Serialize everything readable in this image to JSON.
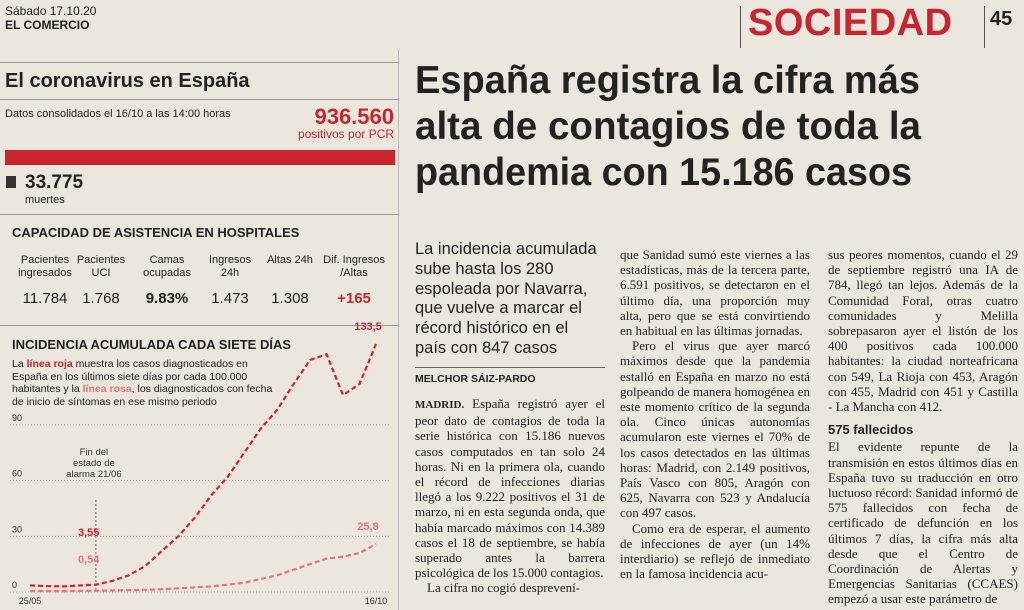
{
  "header": {
    "date": "Sábado 17.10.20",
    "paper": "EL COMERCIO",
    "section": "SOCIEDAD",
    "page": "45"
  },
  "sidebar": {
    "title": "El coronavirus en España",
    "subtitle": "Datos consolidados el 16/10 a las 14:00 horas",
    "positives": "936.560",
    "positives_label": "positivos por PCR",
    "deaths": "33.775",
    "deaths_label": "muertes",
    "hospital_title": "CAPACIDAD DE ASISTENCIA EN HOSPITALES",
    "hospital_headers": [
      "Pacientes ingresados",
      "Pacientes UCI",
      "Camas ocupadas",
      "Ingresos 24h",
      "Altas 24h",
      "Dif. Ingresos /Altas"
    ],
    "hospital_values": [
      "11.784",
      "1.768",
      "9.83%",
      "1.473",
      "1.308",
      "+165"
    ],
    "chart_title": "INCIDENCIA ACUMULADA CADA SIETE DÍAS",
    "chart_desc": [
      "La ",
      "línea roja",
      " muestra los casos diagnosticados en España en los últimos siete días por cada 100.000 habitantes y la ",
      "línea rosa",
      ", los diagnosticados con fecha de inicio de síntomas en ese mismo periodo"
    ],
    "annotation": "Fin del estado de alarma 21/06"
  },
  "chart_data": {
    "type": "line",
    "categories": [
      "25/05",
      null,
      null,
      null,
      null,
      null,
      null,
      null,
      null,
      null,
      null,
      null,
      null,
      null,
      null,
      null,
      null,
      null,
      null,
      null,
      null,
      "16/10"
    ],
    "series": [
      {
        "name": "línea roja",
        "color": "#d3232e",
        "values": [
          3.55,
          3.2,
          3,
          3.5,
          4,
          6,
          9,
          14,
          22,
          30,
          40,
          52,
          62,
          75,
          88,
          98,
          112,
          125,
          128,
          106,
          112,
          133.5
        ],
        "value_labels": [
          "3,55",
          null,
          null,
          null,
          null,
          null,
          null,
          null,
          null,
          null,
          null,
          null,
          null,
          null,
          null,
          null,
          null,
          null,
          null,
          null,
          null,
          "133,5"
        ]
      },
      {
        "name": "línea rosa",
        "color": "#e8737d",
        "values": [
          0.54,
          0.5,
          0.5,
          0.6,
          0.7,
          0.8,
          1,
          1.2,
          1.5,
          2,
          2.5,
          3,
          4,
          5,
          7,
          9,
          12,
          15,
          18,
          19,
          21,
          25.8
        ],
        "value_labels": [
          "0,54",
          null,
          null,
          null,
          null,
          null,
          null,
          null,
          null,
          null,
          null,
          null,
          null,
          null,
          null,
          null,
          null,
          null,
          null,
          null,
          null,
          "25,8"
        ]
      }
    ],
    "ylim": [
      0,
      140
    ],
    "yticks": [
      0,
      30,
      60,
      90
    ],
    "grid": true
  },
  "article": {
    "headline": [
      "España registra la cifra más",
      "alta de contagios de toda la",
      "pandemia con 15.186 casos"
    ],
    "deck": "La incidencia acumulada sube hasta los 280 espoleada por Navarra, que vuelve a marcar el récord histórico en el país con 847 casos",
    "author": "MELCHOR SÁIZ-PARDO",
    "lead": "MADRID.",
    "col1": [
      "España registró ayer el peor dato de contagios de toda la serie histórica con 15.186 nuevos casos computados en tan solo 24 horas. Ni en la primera ola, cuando el récord de infecciones diarias llegó a los 9.222 positivos el 31 de marzo, ni en esta segunda onda, que había marcado máximos con 14.389 casos el 18 de septiembre, se había superado antes la barrera psicológica de los 15.000 contagios.",
      "La cifra no cogió desprevení-"
    ],
    "col2": [
      "que Sanidad sumó este viernes a las estadísticas, más de la tercera parte, 6.591 positivos, se detectaron en el último día, una proporción muy alta, pero que se está convirtiendo en habitual en las últimas jornadas.",
      "Pero el virus que ayer marcó máximos desde que la pandemia estalló en España en marzo no está golpeando de manera homogénea en este momento crítico de la segunda ola. Cinco únicas autonomías acumularon este viernes el 70% de los casos detectados en las últimas horas: Madrid, con 2.149 positivos, País Vasco con 805, Aragón con 625, Navarra con 523 y Andalucía con 497 casos.",
      "Como era de esperar, el aumento de infecciones de ayer (un 14% interdiario) se reflejó de inmediato en la famosa incidencia acu-"
    ],
    "col3a": "sus peores momentos, cuando el 29 de septiembre registró una IA de 784, llegó tan lejos. Además de la Comunidad Foral, otras cuatro comunidades y Melilla sobrepasaron ayer el listón de los 400 positivos cada 100.000 habitantes: la ciudad norteafricana con 549, La Rioja con 453, Aragón con 455, Madrid con 451 y Castilla - La Mancha con 412.",
    "col3_subhead": "575 fallecidos",
    "col3b": "El evidente repunte de la transmisión en estos últimos días en España tuvo su traducción en otro luctuoso récord: Sanidad informó de 575 fallecidos con fecha de certificado de defunción en los últimos 7 días, la cifra más alta desde que el Centro de Coordinación de Alertas y Emergencias Sanitarias (CCAES) empezó a usar este parámetro de"
  }
}
